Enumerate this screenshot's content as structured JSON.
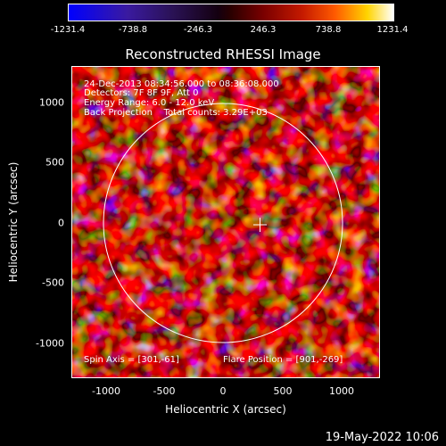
{
  "colorbar": {
    "ticks": [
      "-1231.4",
      "-738.8",
      "-246.3",
      "246.3",
      "738.8",
      "1231.4"
    ]
  },
  "title": "Reconstructed RHESSI Image",
  "info": {
    "line1": "24-Dec-2013 08:34:56.000 to 08:36:08.000",
    "line2": "Detectors: 7F 8F 9F, Att 0",
    "line3": "Energy Range: 6.0 - 12.0 keV",
    "line4": "Back Projection    Total counts: 3.29E+03"
  },
  "footer": {
    "spin_axis": "Spin Axis = [301,-61]",
    "flare_position": "Flare Position = [901,-269]"
  },
  "axes": {
    "xlabel": "Heliocentric X (arcsec)",
    "ylabel": "Heliocentric Y (arcsec)",
    "xticks": [
      "-1000",
      "-500",
      "0",
      "500",
      "1000"
    ],
    "yticks": [
      "1000",
      "500",
      "0",
      "-500",
      "-1000"
    ]
  },
  "timestamp": "19-May-2022 10:06",
  "colors": {
    "low": "#0000ff",
    "mid": "#140010",
    "high": "#ffffff",
    "limb_circle": "#ffffff"
  }
}
